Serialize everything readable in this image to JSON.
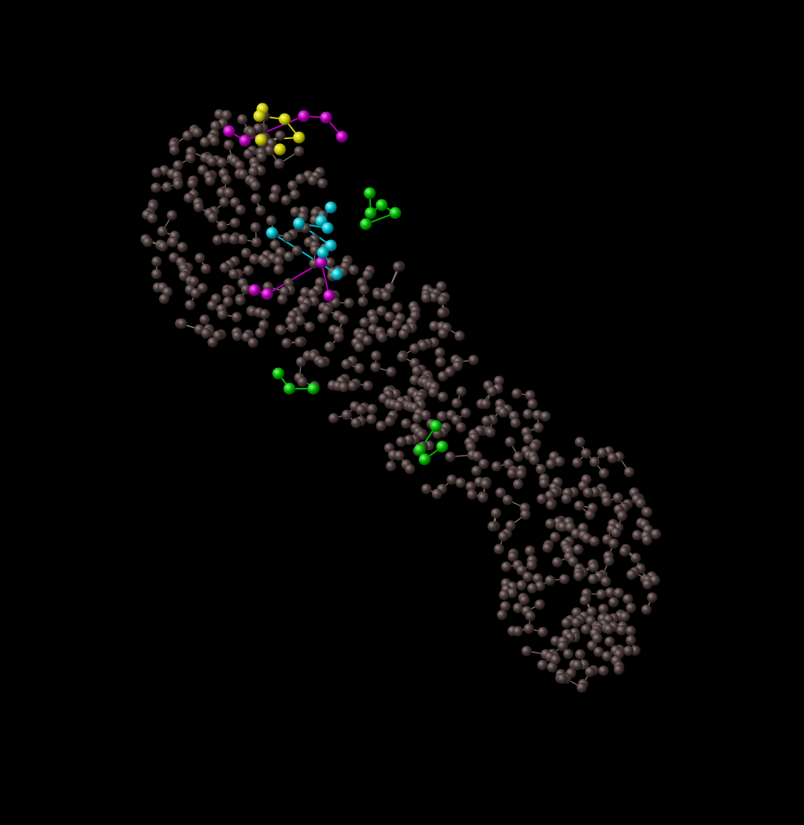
{
  "viewer": {
    "background": "#000000",
    "rendering_style": "ball-and-stick",
    "colors": {
      "backbone": "#3b2f2f",
      "backbone_highlight": "#8a7a78",
      "bond": "#8c7c7a",
      "yellow_residue": "#c8c800",
      "magenta_residue": "#b000b0",
      "cyan_residue": "#00b8c8",
      "green_residue": "#00b400"
    }
  }
}
